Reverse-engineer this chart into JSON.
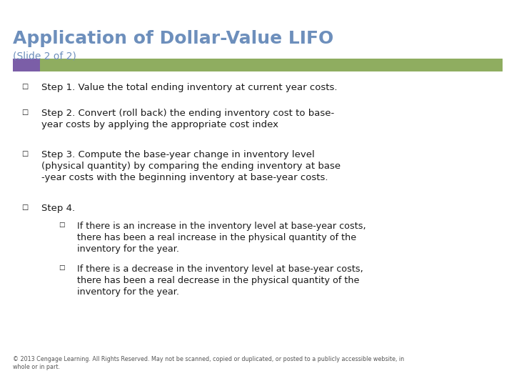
{
  "title": "Application of Dollar-Value LIFO",
  "subtitle": "(Slide 2 of 2)",
  "title_color": "#6d8fbc",
  "subtitle_color": "#6d8fbc",
  "bg_color": "#ffffff",
  "bar_purple": "#7b5ea7",
  "bar_green": "#8fad60",
  "bullet_char": "□",
  "text_color": "#1a1a1a",
  "footer_color": "#555555",
  "bullets": [
    "Step 1. Value the total ending inventory at current year costs.",
    "Step 2. Convert (roll back) the ending inventory cost to base-\nyear costs by applying the appropriate cost index",
    "Step 3. Compute the base-year change in inventory level\n(physical quantity) by comparing the ending inventory at base\n-year costs with the beginning inventory at base-year costs.",
    "Step 4."
  ],
  "sub_bullets": [
    "If there is an increase in the inventory level at base-year costs,\nthere has been a real increase in the physical quantity of the\ninventory for the year.",
    "If there is a decrease in the inventory level at base-year costs,\nthere has been a real decrease in the physical quantity of the\ninventory for the year."
  ],
  "footer": "© 2013 Cengage Learning. All Rights Reserved. May not be scanned, copied or duplicated, or posted to a publicly accessible website, in\nwhole or in part."
}
